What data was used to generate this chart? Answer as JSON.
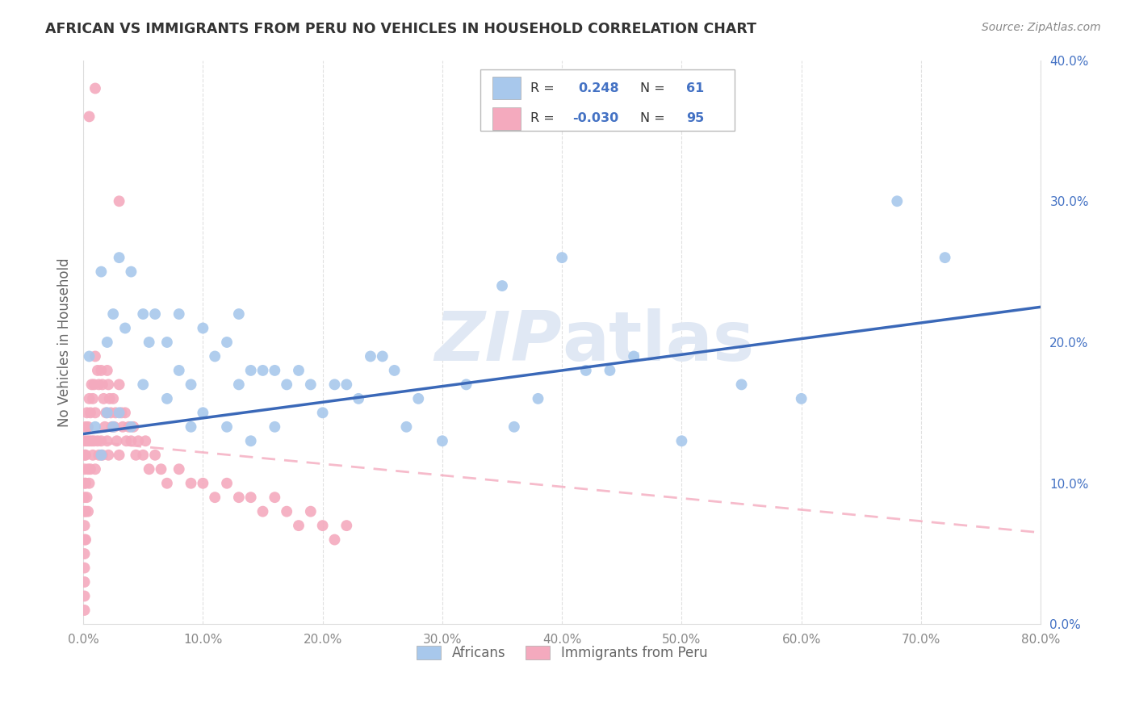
{
  "title": "AFRICAN VS IMMIGRANTS FROM PERU NO VEHICLES IN HOUSEHOLD CORRELATION CHART",
  "source": "Source: ZipAtlas.com",
  "ylabel": "No Vehicles in Household",
  "watermark_zip": "ZIP",
  "watermark_atlas": "atlas",
  "legend_africans_label": "Africans",
  "legend_peru_label": "Immigrants from Peru",
  "africans_R": 0.248,
  "africans_N": 61,
  "peru_R": -0.03,
  "peru_N": 95,
  "xlim": [
    0.0,
    0.8
  ],
  "ylim": [
    0.0,
    0.4
  ],
  "africans_color": "#A8C8EC",
  "peru_color": "#F4AABE",
  "africans_line_color": "#3A68B8",
  "peru_line_color": "#F4AABE",
  "background_color": "#FFFFFF",
  "grid_color": "#CCCCCC",
  "title_color": "#333333",
  "legend_text_color": "#4472C4",
  "right_axis_color": "#4472C4",
  "africans_x": [
    0.005,
    0.01,
    0.015,
    0.015,
    0.02,
    0.02,
    0.025,
    0.025,
    0.03,
    0.03,
    0.035,
    0.04,
    0.04,
    0.05,
    0.05,
    0.055,
    0.06,
    0.07,
    0.07,
    0.08,
    0.08,
    0.09,
    0.09,
    0.1,
    0.1,
    0.11,
    0.12,
    0.12,
    0.13,
    0.13,
    0.14,
    0.14,
    0.15,
    0.16,
    0.16,
    0.17,
    0.18,
    0.19,
    0.2,
    0.21,
    0.22,
    0.23,
    0.24,
    0.25,
    0.26,
    0.27,
    0.28,
    0.3,
    0.32,
    0.35,
    0.36,
    0.38,
    0.4,
    0.42,
    0.44,
    0.46,
    0.5,
    0.55,
    0.6,
    0.68,
    0.72
  ],
  "africans_y": [
    0.19,
    0.14,
    0.25,
    0.12,
    0.2,
    0.15,
    0.22,
    0.14,
    0.26,
    0.15,
    0.21,
    0.25,
    0.14,
    0.22,
    0.17,
    0.2,
    0.22,
    0.2,
    0.16,
    0.22,
    0.18,
    0.17,
    0.14,
    0.21,
    0.15,
    0.19,
    0.2,
    0.14,
    0.22,
    0.17,
    0.18,
    0.13,
    0.18,
    0.18,
    0.14,
    0.17,
    0.18,
    0.17,
    0.15,
    0.17,
    0.17,
    0.16,
    0.19,
    0.19,
    0.18,
    0.14,
    0.16,
    0.13,
    0.17,
    0.24,
    0.14,
    0.16,
    0.26,
    0.18,
    0.18,
    0.19,
    0.13,
    0.17,
    0.16,
    0.3,
    0.26
  ],
  "peru_x": [
    0.001,
    0.001,
    0.001,
    0.001,
    0.001,
    0.001,
    0.001,
    0.001,
    0.001,
    0.001,
    0.001,
    0.001,
    0.001,
    0.002,
    0.002,
    0.002,
    0.002,
    0.002,
    0.003,
    0.003,
    0.003,
    0.004,
    0.004,
    0.004,
    0.005,
    0.005,
    0.005,
    0.006,
    0.006,
    0.007,
    0.007,
    0.008,
    0.008,
    0.009,
    0.009,
    0.01,
    0.01,
    0.01,
    0.012,
    0.012,
    0.013,
    0.013,
    0.015,
    0.015,
    0.016,
    0.016,
    0.017,
    0.018,
    0.019,
    0.02,
    0.02,
    0.021,
    0.021,
    0.022,
    0.023,
    0.024,
    0.025,
    0.026,
    0.027,
    0.028,
    0.03,
    0.03,
    0.032,
    0.033,
    0.035,
    0.036,
    0.038,
    0.04,
    0.042,
    0.044,
    0.046,
    0.05,
    0.052,
    0.055,
    0.06,
    0.065,
    0.07,
    0.08,
    0.09,
    0.1,
    0.11,
    0.12,
    0.13,
    0.14,
    0.15,
    0.16,
    0.17,
    0.18,
    0.19,
    0.2,
    0.21,
    0.22,
    0.03,
    0.01,
    0.005
  ],
  "peru_y": [
    0.13,
    0.12,
    0.11,
    0.1,
    0.09,
    0.08,
    0.07,
    0.06,
    0.05,
    0.04,
    0.03,
    0.02,
    0.01,
    0.14,
    0.12,
    0.1,
    0.08,
    0.06,
    0.15,
    0.13,
    0.09,
    0.14,
    0.11,
    0.08,
    0.16,
    0.13,
    0.1,
    0.15,
    0.11,
    0.17,
    0.13,
    0.16,
    0.12,
    0.17,
    0.13,
    0.19,
    0.15,
    0.11,
    0.18,
    0.13,
    0.17,
    0.12,
    0.18,
    0.13,
    0.17,
    0.12,
    0.16,
    0.14,
    0.15,
    0.18,
    0.13,
    0.17,
    0.12,
    0.16,
    0.15,
    0.14,
    0.16,
    0.14,
    0.15,
    0.13,
    0.17,
    0.12,
    0.15,
    0.14,
    0.15,
    0.13,
    0.14,
    0.13,
    0.14,
    0.12,
    0.13,
    0.12,
    0.13,
    0.11,
    0.12,
    0.11,
    0.1,
    0.11,
    0.1,
    0.1,
    0.09,
    0.1,
    0.09,
    0.09,
    0.08,
    0.09,
    0.08,
    0.07,
    0.08,
    0.07,
    0.06,
    0.07,
    0.3,
    0.38,
    0.36
  ],
  "africans_trendline_x": [
    0.0,
    0.8
  ],
  "africans_trendline_y": [
    0.135,
    0.225
  ],
  "peru_trendline_x": [
    0.0,
    0.8
  ],
  "peru_trendline_y": [
    0.13,
    0.065
  ]
}
